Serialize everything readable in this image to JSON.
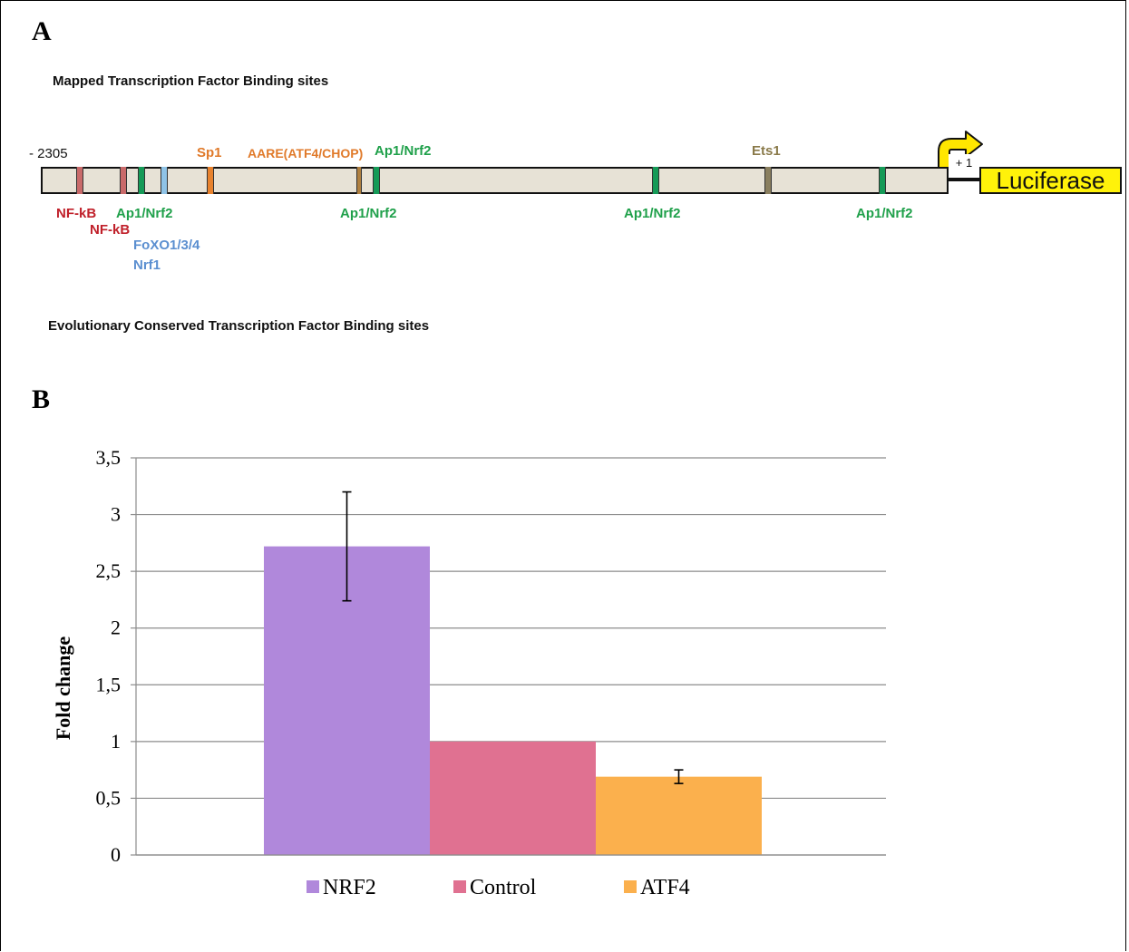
{
  "panel_a": {
    "letter": "A",
    "mapped_title": "Mapped Transcription Factor Binding sites",
    "conserved_title": "Evolutionary Conserved Transcription Factor Binding sites",
    "start_position": "- 2305",
    "tss_label": "+ 1",
    "reporter_label": "Luciferase",
    "labels": {
      "nfkb_1": "NF-kB",
      "nfkb_2": "NF-kB",
      "ap1_1": "Ap1/Nrf2",
      "foxo": "FoXO1/3/4",
      "nrf1": "Nrf1",
      "sp1": "Sp1",
      "aare": "AARE(ATF4/CHOP)",
      "ap1_top": "Ap1/Nrf2",
      "ap1_2": "Ap1/Nrf2",
      "ap1_3": "Ap1/Nrf2",
      "ets1": "Ets1",
      "ap1_4": "Ap1/Nrf2"
    },
    "colors": {
      "nfkb": "#c0202a",
      "nfkb_mark": "#c96a6a",
      "ap1": "#1fa04a",
      "ap1_mark": "#159a57",
      "foxo": "#5b8fd0",
      "foxo_mark": "#8fc3e6",
      "sp1": "#e07a2a",
      "sp1_mark": "#e8822e",
      "aare_mark": "#b08040",
      "ets1": "#8a7a4a",
      "ets1_mark": "#8a7f5f",
      "arrow": "#ffe600"
    }
  },
  "panel_b": {
    "letter": "B"
  },
  "chart_data": {
    "type": "bar",
    "categories": [
      "NRF2",
      "Control",
      "ATF4"
    ],
    "values": [
      2.72,
      1.0,
      0.69
    ],
    "errors": [
      0.48,
      0.0,
      0.06
    ],
    "colors": [
      "#b088db",
      "#e07191",
      "#fbb04d"
    ],
    "ylabel": "Fold change",
    "xlabel": "",
    "ylim": [
      0,
      3.5
    ],
    "yticks": [
      "0",
      "0,5",
      "1",
      "1,5",
      "2",
      "2,5",
      "3",
      "3,5"
    ],
    "grid": true,
    "legend": [
      "NRF2",
      "Control",
      "ATF4"
    ],
    "legend_position": "bottom"
  }
}
